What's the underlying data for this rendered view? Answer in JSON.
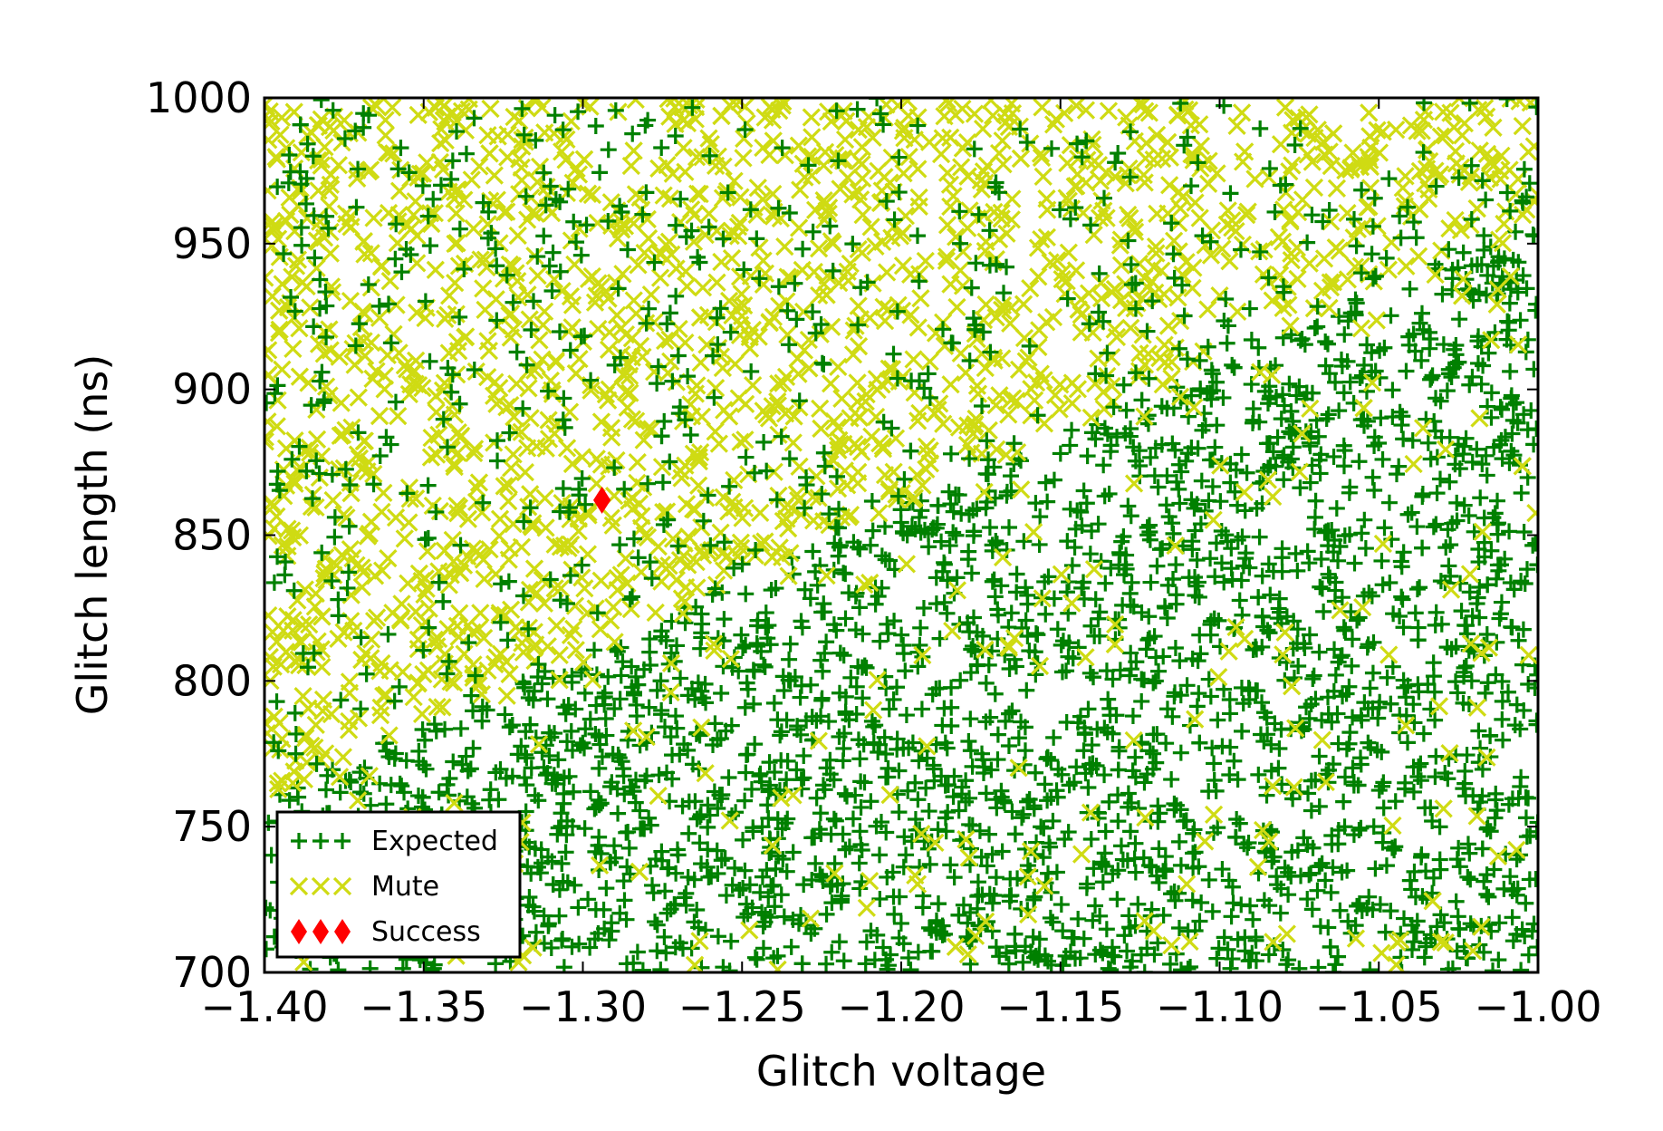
{
  "chart_data": {
    "type": "scatter",
    "title": "",
    "xlabel": "Glitch voltage",
    "ylabel": "Glitch length (ns)",
    "xlim": [
      -1.4,
      -1.0
    ],
    "ylim": [
      700,
      1000
    ],
    "x_ticks": [
      -1.4,
      -1.35,
      -1.3,
      -1.25,
      -1.2,
      -1.15,
      -1.1,
      -1.05,
      -1.0
    ],
    "x_tick_labels": [
      "−1.40",
      "−1.35",
      "−1.30",
      "−1.25",
      "−1.20",
      "−1.15",
      "−1.10",
      "−1.05",
      "−1.00"
    ],
    "y_ticks": [
      700,
      750,
      800,
      850,
      900,
      950,
      1000
    ],
    "y_tick_labels": [
      "700",
      "750",
      "800",
      "850",
      "900",
      "950",
      "1000"
    ],
    "grid": false,
    "legend_position": "lower-left",
    "series": [
      {
        "name": "Expected",
        "marker": "plus",
        "color": "#008000",
        "region": "dense across whole plot, dominant below diagonal from (-1.40, 760) to (-1.00, 960)"
      },
      {
        "name": "Mute",
        "marker": "x",
        "color": "#cfdb13",
        "region": "dense above diagonal from (-1.40, 760) to (-1.00, 960), sparse below"
      },
      {
        "name": "Success",
        "marker": "diamond",
        "color": "#ff0000",
        "points": [
          [
            -1.294,
            862
          ]
        ]
      }
    ]
  }
}
